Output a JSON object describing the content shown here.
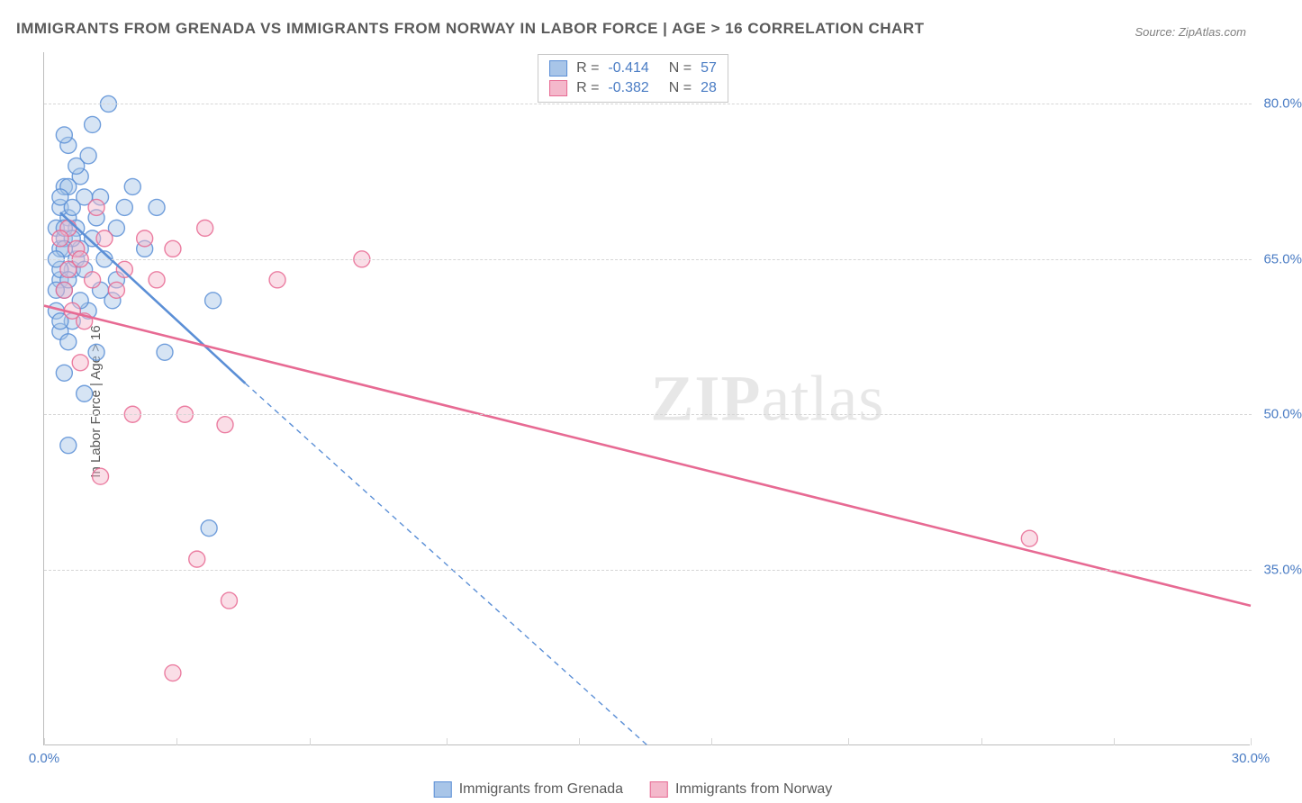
{
  "title": "IMMIGRANTS FROM GRENADA VS IMMIGRANTS FROM NORWAY IN LABOR FORCE | AGE > 16 CORRELATION CHART",
  "source": "Source: ZipAtlas.com",
  "y_axis_label": "In Labor Force | Age > 16",
  "watermark": "ZIPatlas",
  "chart": {
    "type": "scatter",
    "background_color": "#ffffff",
    "grid_color": "#d6d6d6",
    "axis_color": "#bdbdbd",
    "tick_label_color": "#4a7cc4",
    "text_color": "#5a5a5a",
    "xlim": [
      0,
      30
    ],
    "ylim": [
      18,
      85
    ],
    "x_ticks": [
      0,
      3.3,
      6.6,
      10,
      13.3,
      16.6,
      20,
      23.3,
      26.6,
      30
    ],
    "x_tick_labels": {
      "0": "0.0%",
      "30": "30.0%"
    },
    "y_ticks": [
      35,
      50,
      65,
      80
    ],
    "y_tick_labels": {
      "35": "35.0%",
      "50": "50.0%",
      "65": "65.0%",
      "80": "80.0%"
    },
    "marker_radius": 9,
    "marker_stroke_width": 1.4,
    "marker_fill_opacity": 0.22,
    "trend_line_width": 2.6,
    "series": [
      {
        "name": "Immigrants from Grenada",
        "color": "#5b8fd6",
        "fill": "#a8c5e8",
        "R": "-0.414",
        "N": "57",
        "trend": {
          "x1": 0.4,
          "y1": 69.5,
          "x2": 5.0,
          "y2": 53.0,
          "dash_ext_x": 15.0,
          "dash_ext_y": 18.0
        },
        "points": [
          [
            0.3,
            68
          ],
          [
            0.4,
            66
          ],
          [
            0.5,
            67
          ],
          [
            0.6,
            69
          ],
          [
            0.4,
            63
          ],
          [
            0.7,
            64
          ],
          [
            0.5,
            62
          ],
          [
            0.8,
            65
          ],
          [
            0.4,
            70
          ],
          [
            1.0,
            71
          ],
          [
            1.6,
            80
          ],
          [
            1.2,
            78
          ],
          [
            0.6,
            76
          ],
          [
            0.9,
            73
          ],
          [
            0.5,
            72
          ],
          [
            0.3,
            60
          ],
          [
            0.7,
            59
          ],
          [
            0.4,
            58
          ],
          [
            0.6,
            57
          ],
          [
            1.2,
            67
          ],
          [
            1.5,
            65
          ],
          [
            1.8,
            63
          ],
          [
            2.0,
            70
          ],
          [
            2.2,
            72
          ],
          [
            2.8,
            70
          ],
          [
            1.1,
            60
          ],
          [
            1.4,
            62
          ],
          [
            1.7,
            61
          ],
          [
            4.2,
            61
          ],
          [
            2.5,
            66
          ],
          [
            0.5,
            54
          ],
          [
            1.0,
            52
          ],
          [
            0.6,
            47
          ],
          [
            1.3,
            56
          ],
          [
            3.0,
            56
          ],
          [
            4.1,
            39
          ],
          [
            0.8,
            68
          ],
          [
            0.9,
            66
          ],
          [
            0.4,
            64
          ],
          [
            0.3,
            62
          ],
          [
            0.7,
            70
          ],
          [
            0.5,
            68
          ],
          [
            1.0,
            64
          ],
          [
            1.3,
            69
          ],
          [
            0.6,
            72
          ],
          [
            0.8,
            74
          ],
          [
            0.5,
            77
          ],
          [
            1.1,
            75
          ],
          [
            0.9,
            61
          ],
          [
            0.4,
            59
          ],
          [
            0.6,
            63
          ],
          [
            1.4,
            71
          ],
          [
            0.7,
            67
          ],
          [
            0.5,
            66
          ],
          [
            0.3,
            65
          ],
          [
            1.8,
            68
          ],
          [
            0.4,
            71
          ]
        ]
      },
      {
        "name": "Immigrants from Norway",
        "color": "#e76a93",
        "fill": "#f4b8cb",
        "R": "-0.382",
        "N": "28",
        "trend": {
          "x1": 0,
          "y1": 60.5,
          "x2": 30,
          "y2": 31.5
        },
        "points": [
          [
            0.6,
            64
          ],
          [
            0.8,
            66
          ],
          [
            1.2,
            63
          ],
          [
            1.5,
            67
          ],
          [
            2.0,
            64
          ],
          [
            2.5,
            67
          ],
          [
            4.0,
            68
          ],
          [
            2.8,
            63
          ],
          [
            3.2,
            66
          ],
          [
            5.8,
            63
          ],
          [
            7.9,
            65
          ],
          [
            0.9,
            55
          ],
          [
            1.4,
            44
          ],
          [
            2.2,
            50
          ],
          [
            3.5,
            50
          ],
          [
            4.5,
            49
          ],
          [
            3.8,
            36
          ],
          [
            4.6,
            32
          ],
          [
            3.2,
            25
          ],
          [
            24.5,
            38
          ],
          [
            0.5,
            62
          ],
          [
            0.7,
            60
          ],
          [
            1.0,
            59
          ],
          [
            1.8,
            62
          ],
          [
            0.6,
            68
          ],
          [
            1.3,
            70
          ],
          [
            0.4,
            67
          ],
          [
            0.9,
            65
          ]
        ]
      }
    ],
    "legend_bottom": [
      {
        "label": "Immigrants from Grenada",
        "fill": "#a8c5e8",
        "stroke": "#5b8fd6"
      },
      {
        "label": "Immigrants from Norway",
        "fill": "#f4b8cb",
        "stroke": "#e76a93"
      }
    ]
  }
}
